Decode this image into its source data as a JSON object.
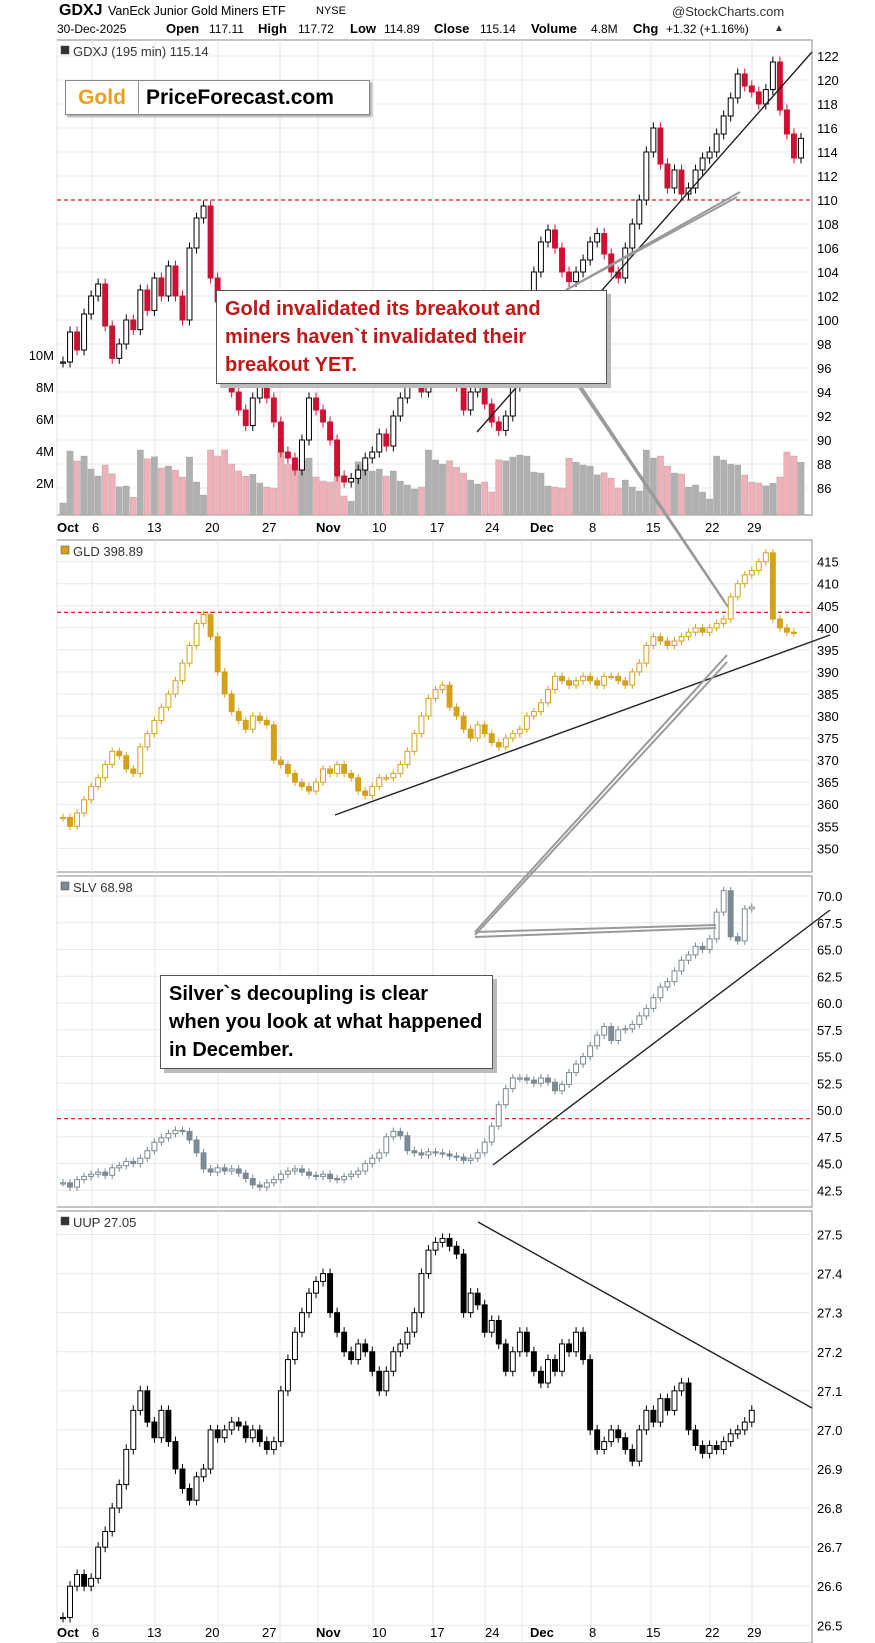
{
  "header": {
    "symbol": "GDXJ",
    "name": "VanEck Junior Gold Miners ETF",
    "exchange": "NYSE",
    "brand": "@StockCharts.com",
    "date": "30-Dec-2025",
    "open_label": "Open",
    "open": "117.11",
    "high_label": "High",
    "high": "117.72",
    "low_label": "Low",
    "low": "114.89",
    "close_label": "Close",
    "close": "115.14",
    "volume_label": "Volume",
    "volume": "4.8M",
    "chg_label": "Chg",
    "chg": "+1.32 (+1.16%)",
    "chg_arrow": "▲"
  },
  "logo": {
    "gold": "Gold",
    "rest": "PriceForecast.com"
  },
  "callouts": {
    "gold": "Gold invalidated its breakout and miners haven`t invalidated their breakout YET.",
    "silver": "Silver`s decoupling is clear when you look at what happened in December."
  },
  "colors": {
    "up": "#ffffff",
    "down_gdxj": "#cc1133",
    "gold": "#d4a21a",
    "silver": "#7b8a94",
    "dollar": "#000000",
    "redline": "#dd2222"
  },
  "chart_data": [
    {
      "type": "candlestick",
      "symbol": "GDXJ",
      "legend": "GDXJ (195 min) 115.14",
      "ylim": [
        85,
        123
      ],
      "yticks": [
        86,
        88,
        90,
        92,
        94,
        96,
        98,
        100,
        102,
        104,
        106,
        108,
        110,
        112,
        114,
        116,
        118,
        120,
        122
      ],
      "resistance": 110,
      "volume_ticks": [
        "2M",
        "4M",
        "6M",
        "8M",
        "10M"
      ],
      "xticks": [
        "Oct",
        "6",
        "13",
        "20",
        "27",
        "Nov",
        "10",
        "17",
        "24",
        "Dec",
        "8",
        "15",
        "22",
        "29"
      ],
      "closes": [
        96.5,
        99,
        97.5,
        100.5,
        102,
        103,
        99.5,
        96.8,
        98,
        100,
        99.2,
        102.5,
        100.8,
        103.5,
        102,
        104.5,
        102,
        100,
        106,
        108.5,
        109.5,
        103.5,
        101.5,
        96,
        94,
        92.5,
        91.2,
        93.5,
        95,
        93.5,
        91.5,
        89,
        88.5,
        87.5,
        90,
        93.5,
        92.5,
        91.5,
        90,
        87,
        86.5,
        86.8,
        87.5,
        88.5,
        89,
        90.5,
        89.5,
        92,
        93.5,
        95,
        96.5,
        94,
        96.5,
        98,
        99.5,
        96.8,
        94.5,
        92.5,
        94,
        95.5,
        93,
        91.5,
        90.8,
        92,
        94.5,
        98,
        102,
        104,
        106.5,
        107.5,
        106,
        104,
        103.2,
        104,
        105,
        106.5,
        107.2,
        105.5,
        104,
        103.5,
        106,
        108,
        110,
        114,
        116,
        113,
        111,
        112.5,
        110.5,
        111,
        112.5,
        113.5,
        114,
        115.5,
        117,
        118.5,
        120.5,
        119.5,
        119,
        118,
        119.2,
        121.5,
        117.5,
        115.5,
        113.5,
        115.14
      ]
    },
    {
      "type": "candlestick",
      "symbol": "GLD",
      "legend": "GLD 398.89",
      "ylim": [
        346,
        419
      ],
      "yticks": [
        350,
        355,
        360,
        365,
        370,
        375,
        380,
        385,
        390,
        395,
        400,
        405,
        410,
        415
      ],
      "resistance": 403.5,
      "closes": [
        357,
        355,
        358,
        361,
        364,
        366,
        369,
        372,
        371,
        368,
        367,
        373,
        376,
        379,
        382,
        385,
        388,
        392,
        396,
        401,
        403,
        398,
        390,
        385,
        381,
        379,
        377,
        380,
        379,
        378,
        370,
        369,
        367,
        365,
        364,
        363,
        365,
        368,
        367,
        369,
        367,
        366,
        363,
        362,
        364,
        366,
        366,
        367,
        369,
        372,
        376,
        380,
        384,
        386,
        387,
        382,
        380,
        377,
        375,
        378,
        376,
        374,
        373,
        375,
        376,
        377,
        380,
        381,
        383,
        386,
        389,
        388,
        387,
        388,
        389,
        388,
        387,
        389,
        389,
        388,
        387,
        390,
        392,
        396,
        398,
        397,
        396,
        397,
        398,
        399,
        400,
        399,
        400,
        401,
        402,
        407,
        410,
        412,
        413,
        415,
        417,
        402,
        400,
        399,
        398.89
      ]
    },
    {
      "type": "candlestick",
      "symbol": "SLV",
      "legend": "SLV 68.98",
      "ylim": [
        41.5,
        71.5
      ],
      "yticks": [
        42.5,
        45.0,
        47.5,
        50.0,
        52.5,
        55.0,
        57.5,
        60.0,
        62.5,
        65.0,
        67.5,
        70.0
      ],
      "resistance": 49.2,
      "closes": [
        43.2,
        42.8,
        43.5,
        43.8,
        44.0,
        44.2,
        43.9,
        44.6,
        44.8,
        45.2,
        45.0,
        45.5,
        46.2,
        47.0,
        47.4,
        47.8,
        48.1,
        48.0,
        47.2,
        46.0,
        44.5,
        44.2,
        44.6,
        44.3,
        44.5,
        44.1,
        43.6,
        43.0,
        42.8,
        43.2,
        43.5,
        44.0,
        44.3,
        44.5,
        44.2,
        43.9,
        43.8,
        44.0,
        43.6,
        43.5,
        43.8,
        44.0,
        44.3,
        45.0,
        45.5,
        46.0,
        47.5,
        48.0,
        47.6,
        46.2,
        46.0,
        45.8,
        46.1,
        46.0,
        45.9,
        45.7,
        45.6,
        45.3,
        45.5,
        46.0,
        47.0,
        48.5,
        50.5,
        52.0,
        53.0,
        53.0,
        52.8,
        52.5,
        53.0,
        52.6,
        51.8,
        52.4,
        53.5,
        54.3,
        55.0,
        56.0,
        57.0,
        57.8,
        56.5,
        57.5,
        57.6,
        58.0,
        58.8,
        59.5,
        60.5,
        61.5,
        62.0,
        63.0,
        64.0,
        64.5,
        65.3,
        65.0,
        66.0,
        68.5,
        70.5,
        66.2,
        65.8,
        68.8,
        68.98
      ]
    },
    {
      "type": "candlestick",
      "symbol": "UUP",
      "legend": "UUP 27.05",
      "ylim": [
        26.47,
        27.55
      ],
      "yticks": [
        26.5,
        26.6,
        26.7,
        26.8,
        26.9,
        27.0,
        27.1,
        27.2,
        27.3,
        27.4,
        27.5
      ],
      "closes": [
        26.52,
        26.6,
        26.63,
        26.6,
        26.62,
        26.7,
        26.74,
        26.8,
        26.86,
        26.95,
        27.05,
        27.1,
        27.02,
        26.98,
        27.05,
        26.97,
        26.9,
        26.85,
        26.82,
        26.88,
        26.9,
        27.0,
        26.98,
        27.0,
        27.02,
        27.01,
        26.98,
        27.0,
        26.97,
        26.95,
        26.97,
        27.1,
        27.18,
        27.25,
        27.3,
        27.35,
        27.38,
        27.4,
        27.3,
        27.25,
        27.2,
        27.18,
        27.22,
        27.2,
        27.15,
        27.1,
        27.15,
        27.2,
        27.22,
        27.25,
        27.3,
        27.4,
        27.46,
        27.48,
        27.49,
        27.47,
        27.45,
        27.3,
        27.35,
        27.32,
        27.25,
        27.28,
        27.22,
        27.15,
        27.2,
        27.25,
        27.2,
        27.15,
        27.12,
        27.18,
        27.15,
        27.22,
        27.2,
        27.25,
        27.18,
        27.0,
        26.95,
        26.97,
        27.0,
        26.98,
        26.95,
        26.92,
        27.0,
        27.05,
        27.02,
        27.08,
        27.05,
        27.1,
        27.12,
        27.0,
        26.96,
        26.94,
        26.96,
        26.95,
        26.97,
        26.99,
        27.0,
        27.02,
        27.05
      ]
    }
  ]
}
